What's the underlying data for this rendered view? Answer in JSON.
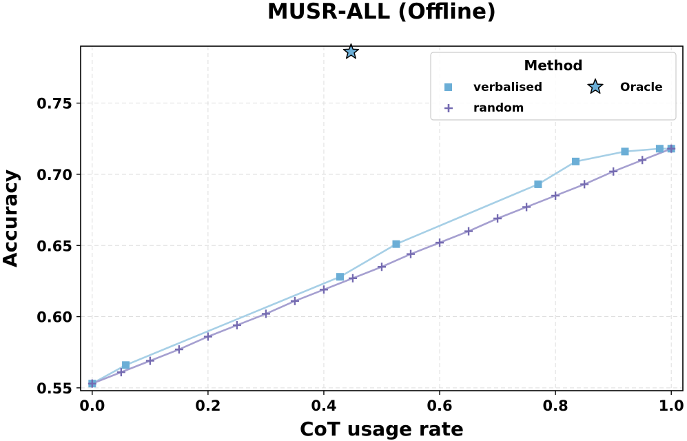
{
  "chart_data": {
    "type": "line",
    "title": "MUSR-ALL (Offline)",
    "xlabel": "CoT usage rate",
    "ylabel": "Accuracy",
    "xlim": [
      -0.02,
      1.02
    ],
    "ylim": [
      0.548,
      0.79
    ],
    "xticks": [
      0.0,
      0.2,
      0.4,
      0.6,
      0.8,
      1.0
    ],
    "xtick_labels": [
      "0.0",
      "0.2",
      "0.4",
      "0.6",
      "0.8",
      "1.0"
    ],
    "yticks": [
      0.55,
      0.6,
      0.65,
      0.7,
      0.75
    ],
    "ytick_labels": [
      "0.55",
      "0.60",
      "0.65",
      "0.70",
      "0.75"
    ],
    "grid": true,
    "legend": {
      "title": "Method",
      "position": "top-right",
      "entries": [
        {
          "label": "verbalised",
          "marker": "square"
        },
        {
          "label": "random",
          "marker": "plus"
        },
        {
          "label": "Oracle",
          "marker": "star"
        }
      ]
    },
    "series": [
      {
        "name": "verbalised",
        "marker": "square",
        "color": "#6baed6",
        "line_color": "#a6cfe6",
        "x": [
          0.0,
          0.058,
          0.428,
          0.525,
          0.77,
          0.835,
          0.92,
          0.98,
          1.0
        ],
        "y": [
          0.553,
          0.566,
          0.628,
          0.651,
          0.693,
          0.709,
          0.716,
          0.718,
          0.718
        ]
      },
      {
        "name": "random",
        "marker": "plus",
        "color": "#756bb1",
        "line_color": "#a59fd0",
        "x": [
          0.0,
          0.05,
          0.1,
          0.15,
          0.2,
          0.25,
          0.3,
          0.35,
          0.4,
          0.45,
          0.5,
          0.55,
          0.6,
          0.65,
          0.7,
          0.75,
          0.8,
          0.85,
          0.9,
          0.95,
          1.0
        ],
        "y": [
          0.553,
          0.561,
          0.569,
          0.577,
          0.586,
          0.594,
          0.602,
          0.611,
          0.619,
          0.627,
          0.635,
          0.644,
          0.652,
          0.66,
          0.669,
          0.677,
          0.685,
          0.693,
          0.702,
          0.71,
          0.718
        ]
      },
      {
        "name": "Oracle",
        "marker": "star",
        "color": "#6baed6",
        "x": [
          0.447
        ],
        "y": [
          0.786
        ]
      }
    ]
  }
}
